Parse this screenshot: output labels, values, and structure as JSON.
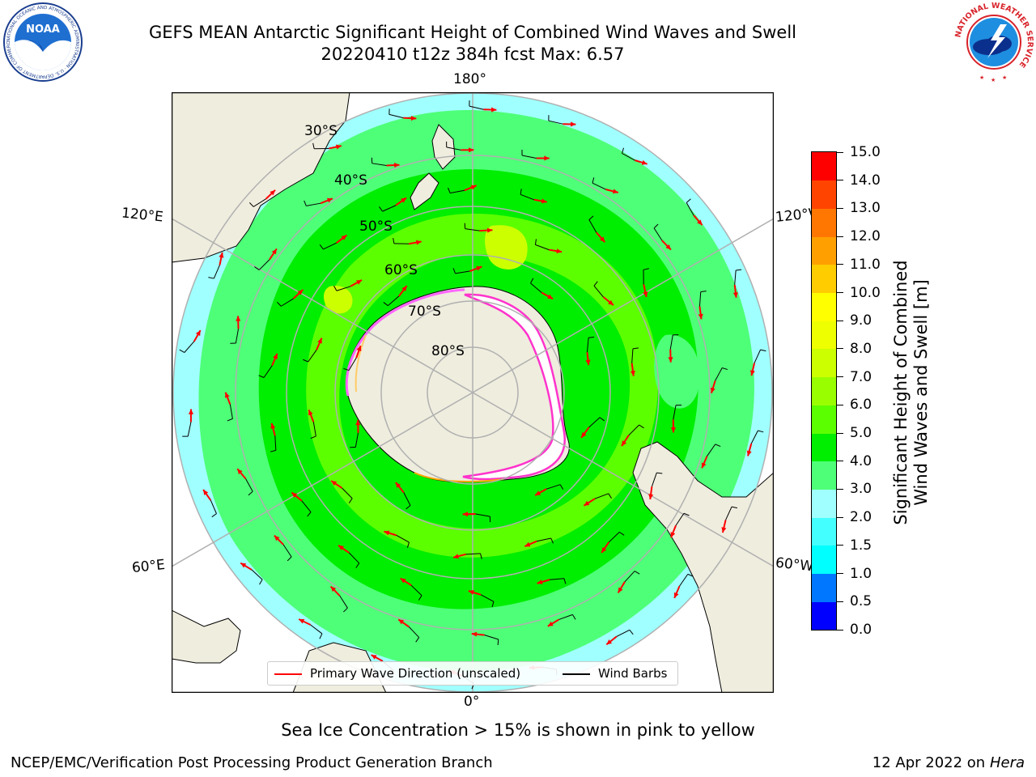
{
  "header": {
    "title_line1": "GEFS MEAN Antarctic Significant Height of Combined Wind Waves and Swell",
    "title_line2": "20220410 t12z 384h fcst   Max: 6.57"
  },
  "logos": {
    "noaa_text": "NOAA",
    "noaa_ring_text": "NATIONAL OCEANIC AND ATMOSPHERIC ADMINISTRATION · U.S. DEPARTMENT OF COMMERCE",
    "nws_ring_text": "NATIONAL WEATHER SERVICE"
  },
  "map": {
    "projection": "south-polar-stereographic",
    "longitude_labels": {
      "top": "180°",
      "bottom": "0°",
      "upper_left": "120°E",
      "lower_left": "60°E",
      "upper_right": "120°W",
      "lower_right": "60°W"
    },
    "latitude_labels": [
      "30°S",
      "40°S",
      "50°S",
      "60°S",
      "70°S",
      "80°S"
    ],
    "land_color": "#efedde",
    "sea_ice_color": "#ffffff",
    "sea_ice_edge_colors": [
      "#ff66ff",
      "#ff33cc",
      "#ffcc66",
      "#ffaa00"
    ],
    "wave_direction_color": "#ff0000",
    "wind_barb_color": "#000000"
  },
  "colorbar": {
    "title_line1": "Significant Height of Combined",
    "title_line2": "Wind Waves and Swell [m]",
    "ticks": [
      "0.0",
      "0.5",
      "1.0",
      "1.5",
      "2.0",
      "3.0",
      "4.0",
      "5.0",
      "6.0",
      "7.0",
      "8.0",
      "9.0",
      "10.0",
      "11.0",
      "12.0",
      "13.0",
      "14.0",
      "15.0"
    ],
    "colors": [
      "#0000ff",
      "#0077ff",
      "#00ffff",
      "#44ffff",
      "#a0ffff",
      "#4eff78",
      "#00ee00",
      "#5cff00",
      "#99ff00",
      "#ccff00",
      "#eeff00",
      "#ffff00",
      "#ffcc00",
      "#ffa000",
      "#ff7700",
      "#ff4400",
      "#ff0000"
    ]
  },
  "legend": {
    "primary_wave_label": "Primary Wave Direction (unscaled)",
    "wind_barbs_label": "Wind Barbs"
  },
  "footnote": "Sea Ice Concentration > 15% is shown in pink to yellow",
  "footer": {
    "credit": "NCEP/EMC/Verification Post Processing Product Generation Branch",
    "date_prefix": "12 Apr 2022 on ",
    "machine": "Hera"
  }
}
